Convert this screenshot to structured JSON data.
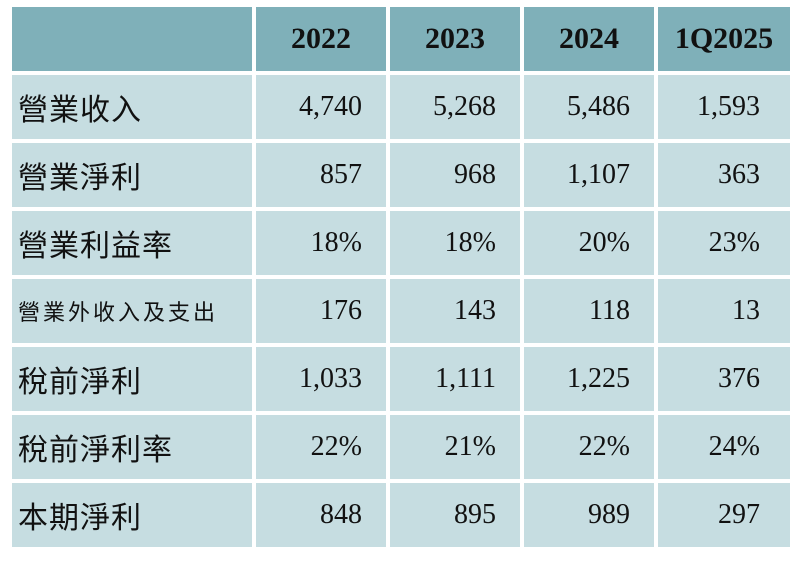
{
  "table": {
    "headers": [
      "",
      "2022",
      "2023",
      "2024",
      "1Q2025"
    ],
    "rows": [
      {
        "label": "營業收入",
        "values": [
          "4,740",
          "5,268",
          "5,486",
          "1,593"
        ]
      },
      {
        "label": "營業淨利",
        "values": [
          "857",
          "968",
          "1,107",
          "363"
        ]
      },
      {
        "label": "營業利益率",
        "values": [
          "18%",
          "18%",
          "20%",
          "23%"
        ]
      },
      {
        "label": "營業外收入及支出",
        "values": [
          "176",
          "143",
          "118",
          "13"
        ]
      },
      {
        "label": "稅前淨利",
        "values": [
          "1,033",
          "1,111",
          "1,225",
          "376"
        ]
      },
      {
        "label": "稅前淨利率",
        "values": [
          "22%",
          "21%",
          "22%",
          "24%"
        ]
      },
      {
        "label": "本期淨利",
        "values": [
          "848",
          "895",
          "989",
          "297"
        ]
      }
    ]
  },
  "colors": {
    "header_bg": "#7fb0b9",
    "cell_bg": "#c6dde1",
    "border": "#ffffff"
  }
}
